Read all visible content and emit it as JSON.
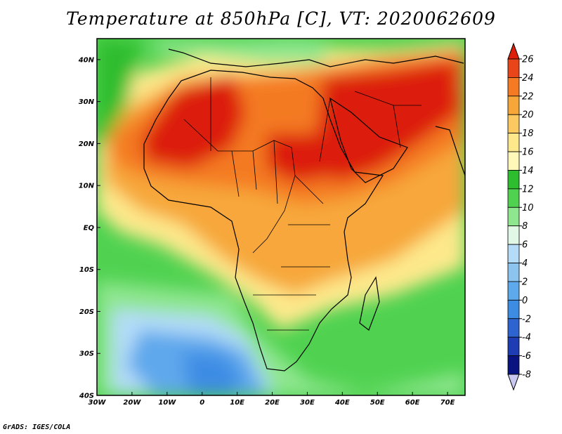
{
  "title": "Temperature at 850hPa [C], VT: 2020062609",
  "credit": "GrADS: IGES/COLA",
  "map": {
    "variable": "Temperature at 850hPa",
    "units": "C",
    "valid_time": "2020062609",
    "lon_range": [
      -30,
      75
    ],
    "lat_range": [
      -40,
      45
    ],
    "lon_ticks": [
      "30W",
      "20W",
      "10W",
      "0",
      "10E",
      "20E",
      "30E",
      "40E",
      "50E",
      "60E",
      "70E"
    ],
    "lat_ticks": [
      "40N",
      "30N",
      "20N",
      "10N",
      "EQ",
      "10S",
      "20S",
      "30S",
      "40S"
    ]
  },
  "colorbar": {
    "labels": [
      "26",
      "24",
      "22",
      "20",
      "18",
      "16",
      "14",
      "12",
      "10",
      "8",
      "6",
      "4",
      "2",
      "0",
      "-2",
      "-4",
      "-6",
      "-8"
    ],
    "colors": [
      "#dc1e0a",
      "#e8461a",
      "#f47a24",
      "#f7a73a",
      "#fcc860",
      "#fde98c",
      "#fff8b8",
      "#2ebd2e",
      "#50d250",
      "#8ee68e",
      "#e2f8e6",
      "#b4dcf8",
      "#8cc4f0",
      "#5ea8ec",
      "#3c8ce4",
      "#2e64d0",
      "#1e3cb4",
      "#0a1480",
      "#c8c8f0"
    ]
  },
  "colors": {
    "hot": "#dc1e0a",
    "warm": "#f7a73a",
    "mild": "#fde98c",
    "cool": "#50d250",
    "cold": "#8cc4f0",
    "coast": "#000000"
  }
}
